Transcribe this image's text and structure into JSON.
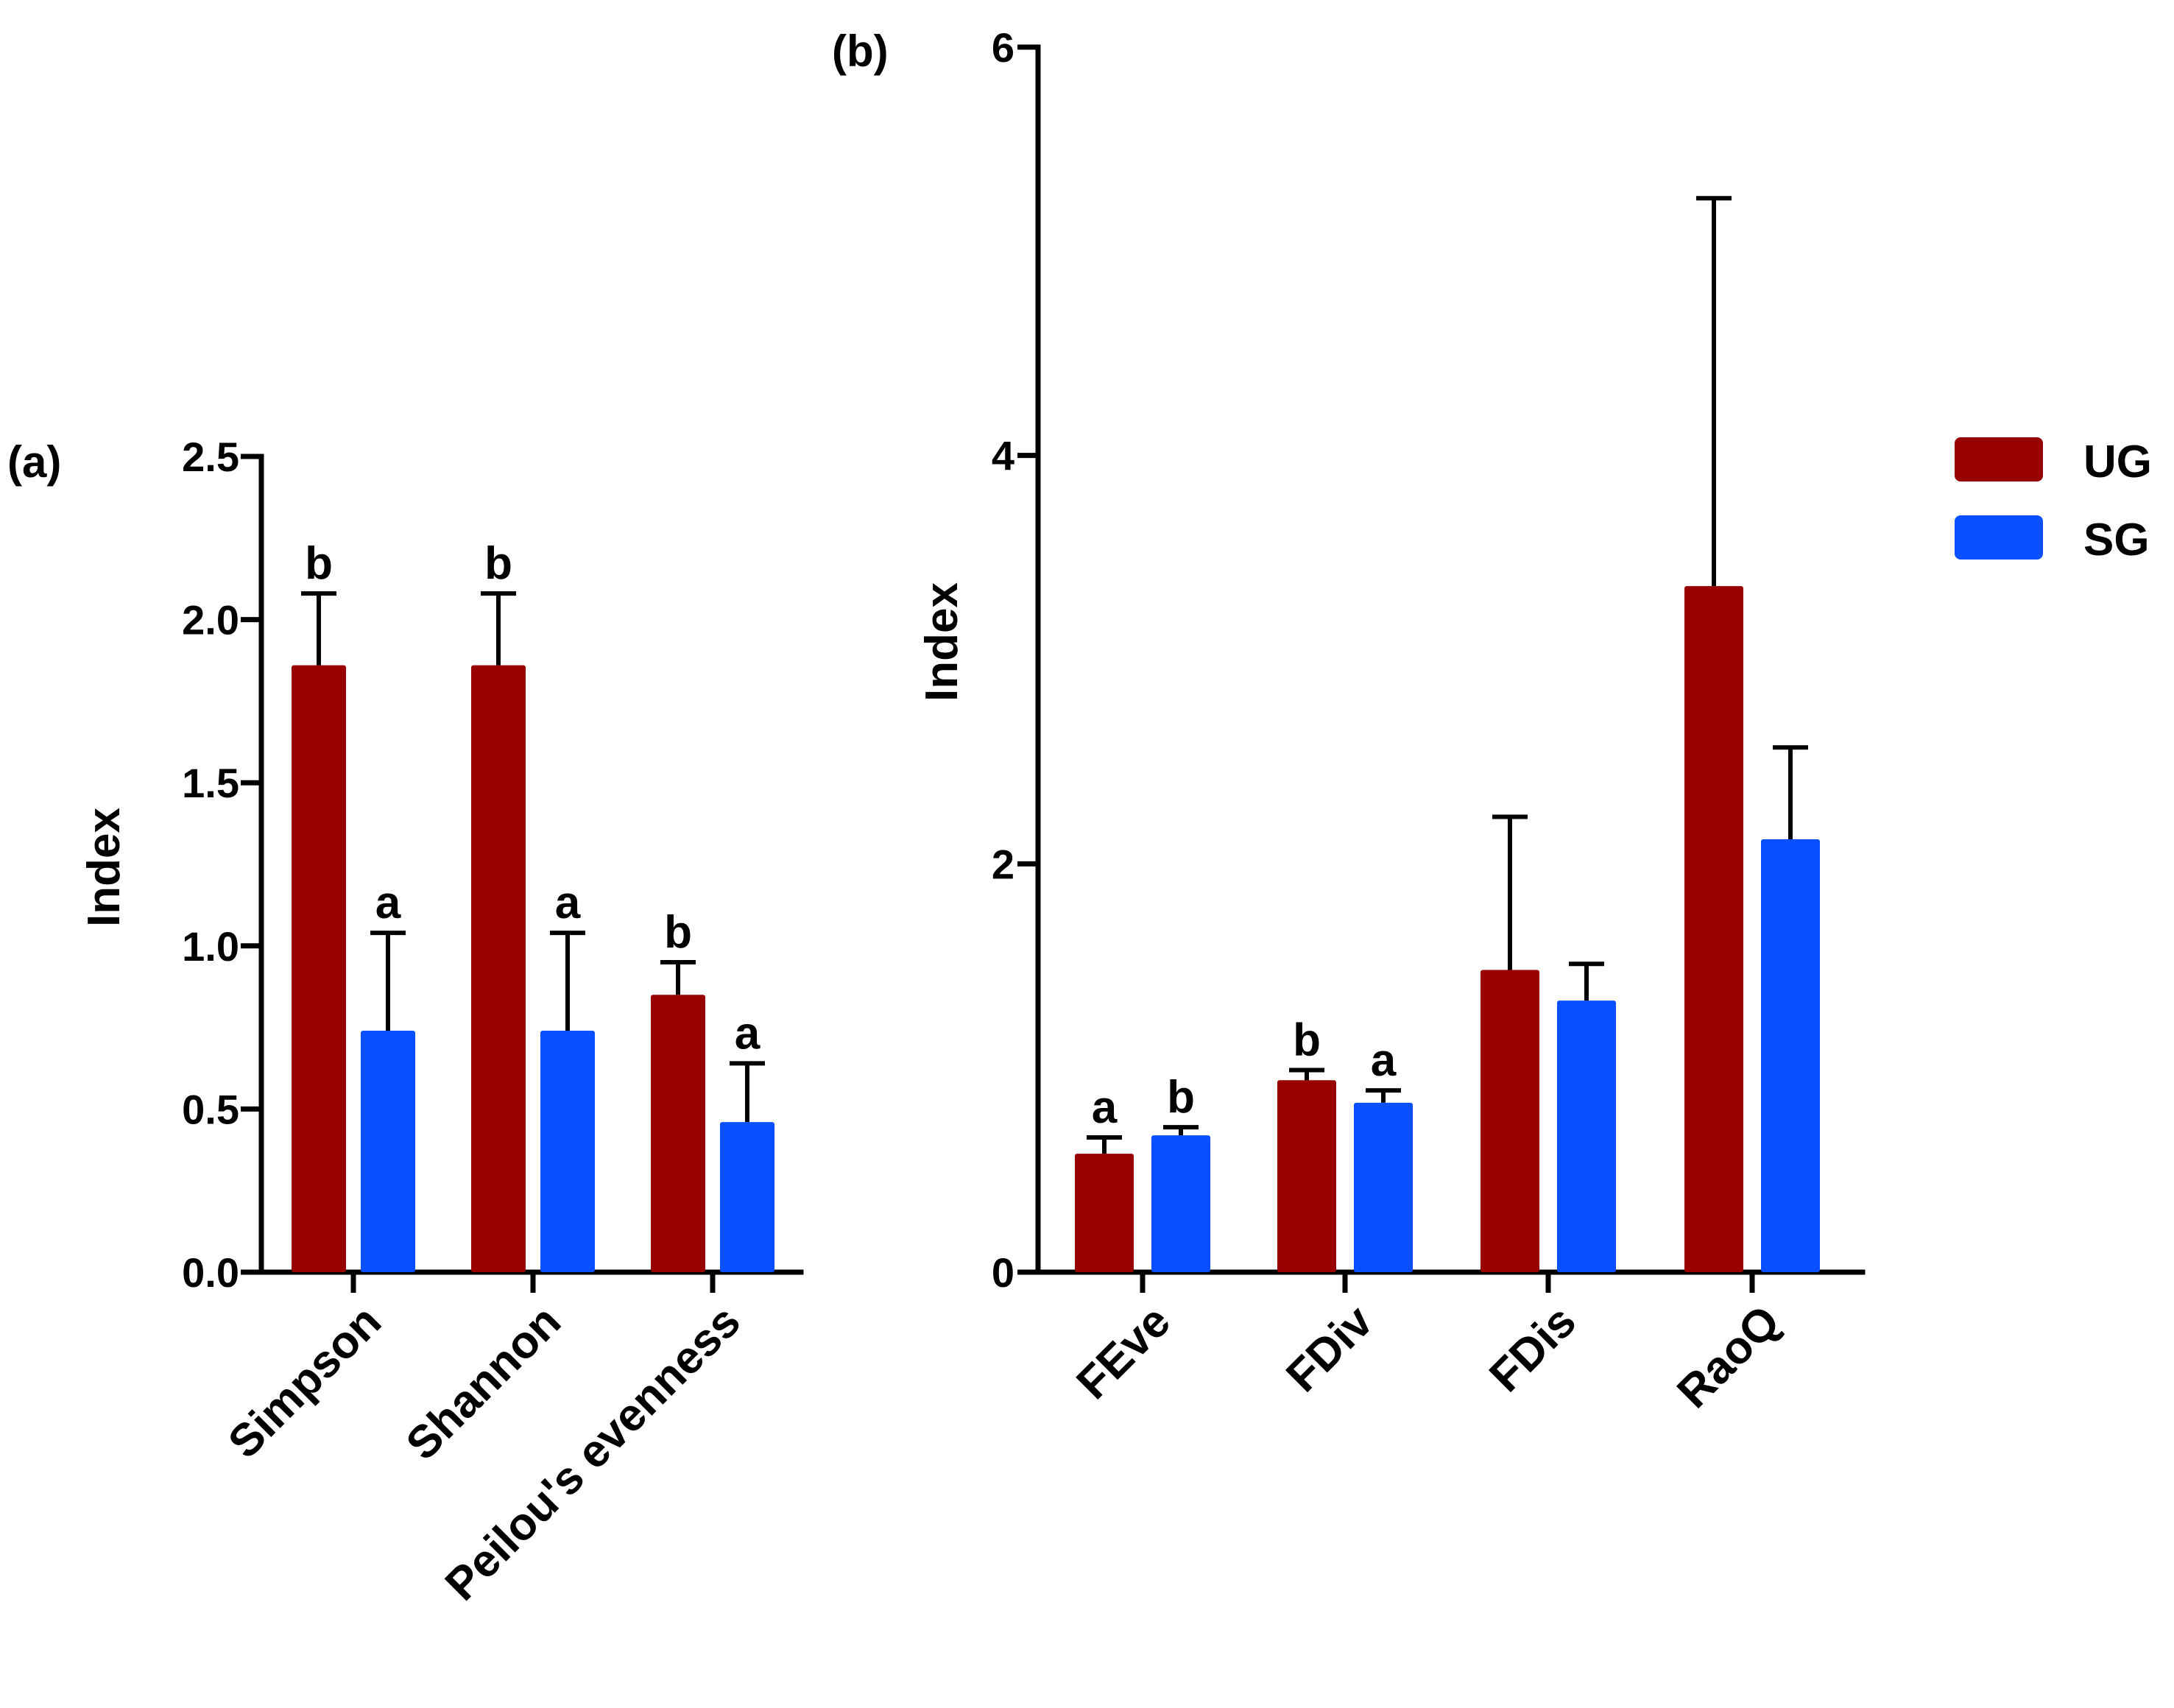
{
  "legend": [
    {
      "name": "UG",
      "color": "#990000"
    },
    {
      "name": "SG",
      "color": "#0A50FF"
    }
  ],
  "chart_data": [
    {
      "type": "bar",
      "panel_label": "(a)",
      "ylabel": "Index",
      "ylim": [
        0,
        2.5
      ],
      "yticks": [
        "0.0",
        "0.5",
        "1.0",
        "1.5",
        "2.0",
        "2.5"
      ],
      "categories": [
        "Simpson",
        "Shannon",
        "Peilou's evenness"
      ],
      "series": [
        {
          "name": "UG",
          "values": [
            1.86,
            1.86,
            0.85
          ],
          "errors": [
            0.22,
            0.22,
            0.1
          ],
          "letters": [
            "b",
            "b",
            "b"
          ]
        },
        {
          "name": "SG",
          "values": [
            0.74,
            0.74,
            0.46
          ],
          "errors": [
            0.3,
            0.3,
            0.18
          ],
          "letters": [
            "a",
            "a",
            "a"
          ]
        }
      ]
    },
    {
      "type": "bar",
      "panel_label": "(b)",
      "ylabel": "Index",
      "ylim": [
        0,
        6
      ],
      "yticks": [
        "0",
        "2",
        "4",
        "6"
      ],
      "categories": [
        "FEve",
        "FDiv",
        "FDis",
        "RaoQ"
      ],
      "series": [
        {
          "name": "UG",
          "values": [
            0.58,
            0.94,
            1.48,
            3.36
          ],
          "errors": [
            0.08,
            0.05,
            0.75,
            1.9
          ],
          "letters": [
            "a",
            "b",
            "",
            ""
          ]
        },
        {
          "name": "SG",
          "values": [
            0.67,
            0.83,
            1.33,
            2.12
          ],
          "errors": [
            0.04,
            0.06,
            0.18,
            0.45
          ],
          "letters": [
            "b",
            "a",
            "",
            ""
          ]
        }
      ]
    }
  ]
}
